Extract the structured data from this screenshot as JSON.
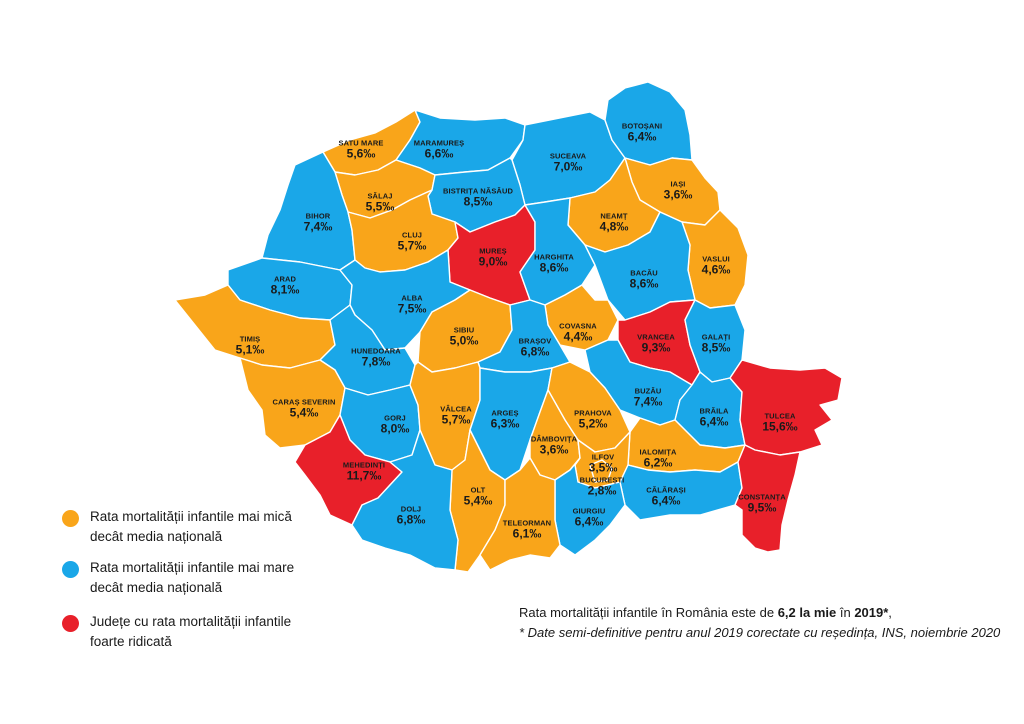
{
  "colors": {
    "below": "#F9A51A",
    "above": "#1AA7E8",
    "high": "#E8202A"
  },
  "legend": [
    {
      "id": "below",
      "text": "Rata mortalității infantile mai mică decât media națională"
    },
    {
      "id": "above",
      "text": "Rata mortalității infantile mai mare decât media națională"
    },
    {
      "id": "high",
      "text": "Județe cu rata mortalității infantile foarte ridicată"
    }
  ],
  "note": {
    "line1_pre": "Rata mortalității infantile în România este de ",
    "line1_value": "6,2 la mie",
    "line1_mid": " în ",
    "line1_year": "2019*",
    "line1_end": ",",
    "line2": "* Date semi-definitive pentru anul 2019 corectate cu reședința, INS, noiembrie 2020"
  },
  "counties": {
    "satumare": {
      "name": "SATU MARE",
      "value": "5,6‰",
      "cat": "below"
    },
    "maramures": {
      "name": "MARAMUREȘ",
      "value": "6,6‰",
      "cat": "above"
    },
    "suceava": {
      "name": "SUCEAVA",
      "value": "7,0‰",
      "cat": "above"
    },
    "botosani": {
      "name": "BOTOȘANI",
      "value": "6,4‰",
      "cat": "above"
    },
    "salaj": {
      "name": "SĂLAJ",
      "value": "5,5‰",
      "cat": "below"
    },
    "bistrita": {
      "name": "BISTRIȚA NĂSĂUD",
      "value": "8,5‰",
      "cat": "above"
    },
    "iasi": {
      "name": "IAȘI",
      "value": "3,6‰",
      "cat": "below"
    },
    "bihor": {
      "name": "BIHOR",
      "value": "7,4‰",
      "cat": "above"
    },
    "cluj": {
      "name": "CLUJ",
      "value": "5,7‰",
      "cat": "below"
    },
    "neamt": {
      "name": "NEAMȚ",
      "value": "4,8‰",
      "cat": "below"
    },
    "mures": {
      "name": "MUREȘ",
      "value": "9,0‰",
      "cat": "high"
    },
    "harghita": {
      "name": "HARGHITA",
      "value": "8,6‰",
      "cat": "above"
    },
    "vaslui": {
      "name": "VASLUI",
      "value": "4,6‰",
      "cat": "below"
    },
    "arad": {
      "name": "ARAD",
      "value": "8,1‰",
      "cat": "above"
    },
    "bacau": {
      "name": "BACĂU",
      "value": "8,6‰",
      "cat": "above"
    },
    "alba": {
      "name": "ALBA",
      "value": "7,5‰",
      "cat": "above"
    },
    "timis": {
      "name": "TIMIȘ",
      "value": "5,1‰",
      "cat": "below"
    },
    "sibiu": {
      "name": "SIBIU",
      "value": "5,0‰",
      "cat": "below"
    },
    "covasna": {
      "name": "COVASNA",
      "value": "4,4‰",
      "cat": "below"
    },
    "vrancea": {
      "name": "VRANCEA",
      "value": "9,3‰",
      "cat": "high"
    },
    "galati": {
      "name": "GALAȚI",
      "value": "8,5‰",
      "cat": "above"
    },
    "hunedoara": {
      "name": "HUNEDOARA",
      "value": "7,8‰",
      "cat": "above"
    },
    "brasov": {
      "name": "BRAȘOV",
      "value": "6,8‰",
      "cat": "above"
    },
    "caras": {
      "name": "CARAȘ SEVERIN",
      "value": "5,4‰",
      "cat": "below"
    },
    "buzau": {
      "name": "BUZĂU",
      "value": "7,4‰",
      "cat": "above"
    },
    "gorj": {
      "name": "GORJ",
      "value": "8,0‰",
      "cat": "above"
    },
    "valcea": {
      "name": "VÂLCEA",
      "value": "5,7‰",
      "cat": "below"
    },
    "arges": {
      "name": "ARGEȘ",
      "value": "6,3‰",
      "cat": "above"
    },
    "prahova": {
      "name": "PRAHOVA",
      "value": "5,2‰",
      "cat": "below"
    },
    "braila": {
      "name": "BRĂILA",
      "value": "6,4‰",
      "cat": "above"
    },
    "tulcea": {
      "name": "TULCEA",
      "value": "15,6‰",
      "cat": "high"
    },
    "dambovita": {
      "name": "DÂMBOVIȚA",
      "value": "3,6‰",
      "cat": "below"
    },
    "ilfov": {
      "name": "ILFOV",
      "value": "3,5‰",
      "cat": "below"
    },
    "ialomita": {
      "name": "IALOMIȚA",
      "value": "6,2‰",
      "cat": "below"
    },
    "mehedinti": {
      "name": "MEHEDINȚI",
      "value": "11,7‰",
      "cat": "high"
    },
    "bucuresti": {
      "name": "BUCUREȘTI",
      "value": "2,8‰",
      "cat": "below"
    },
    "olt": {
      "name": "OLT",
      "value": "5,4‰",
      "cat": "below"
    },
    "calarasi": {
      "name": "CĂLĂRAȘI",
      "value": "6,4‰",
      "cat": "above"
    },
    "constanta": {
      "name": "CONSTANȚA",
      "value": "9,5‰",
      "cat": "high"
    },
    "dolj": {
      "name": "DOLJ",
      "value": "6,8‰",
      "cat": "above"
    },
    "giurgiu": {
      "name": "GIURGIU",
      "value": "6,4‰",
      "cat": "above"
    },
    "teleorman": {
      "name": "TELEORMAN",
      "value": "6,1‰",
      "cat": "below"
    }
  }
}
